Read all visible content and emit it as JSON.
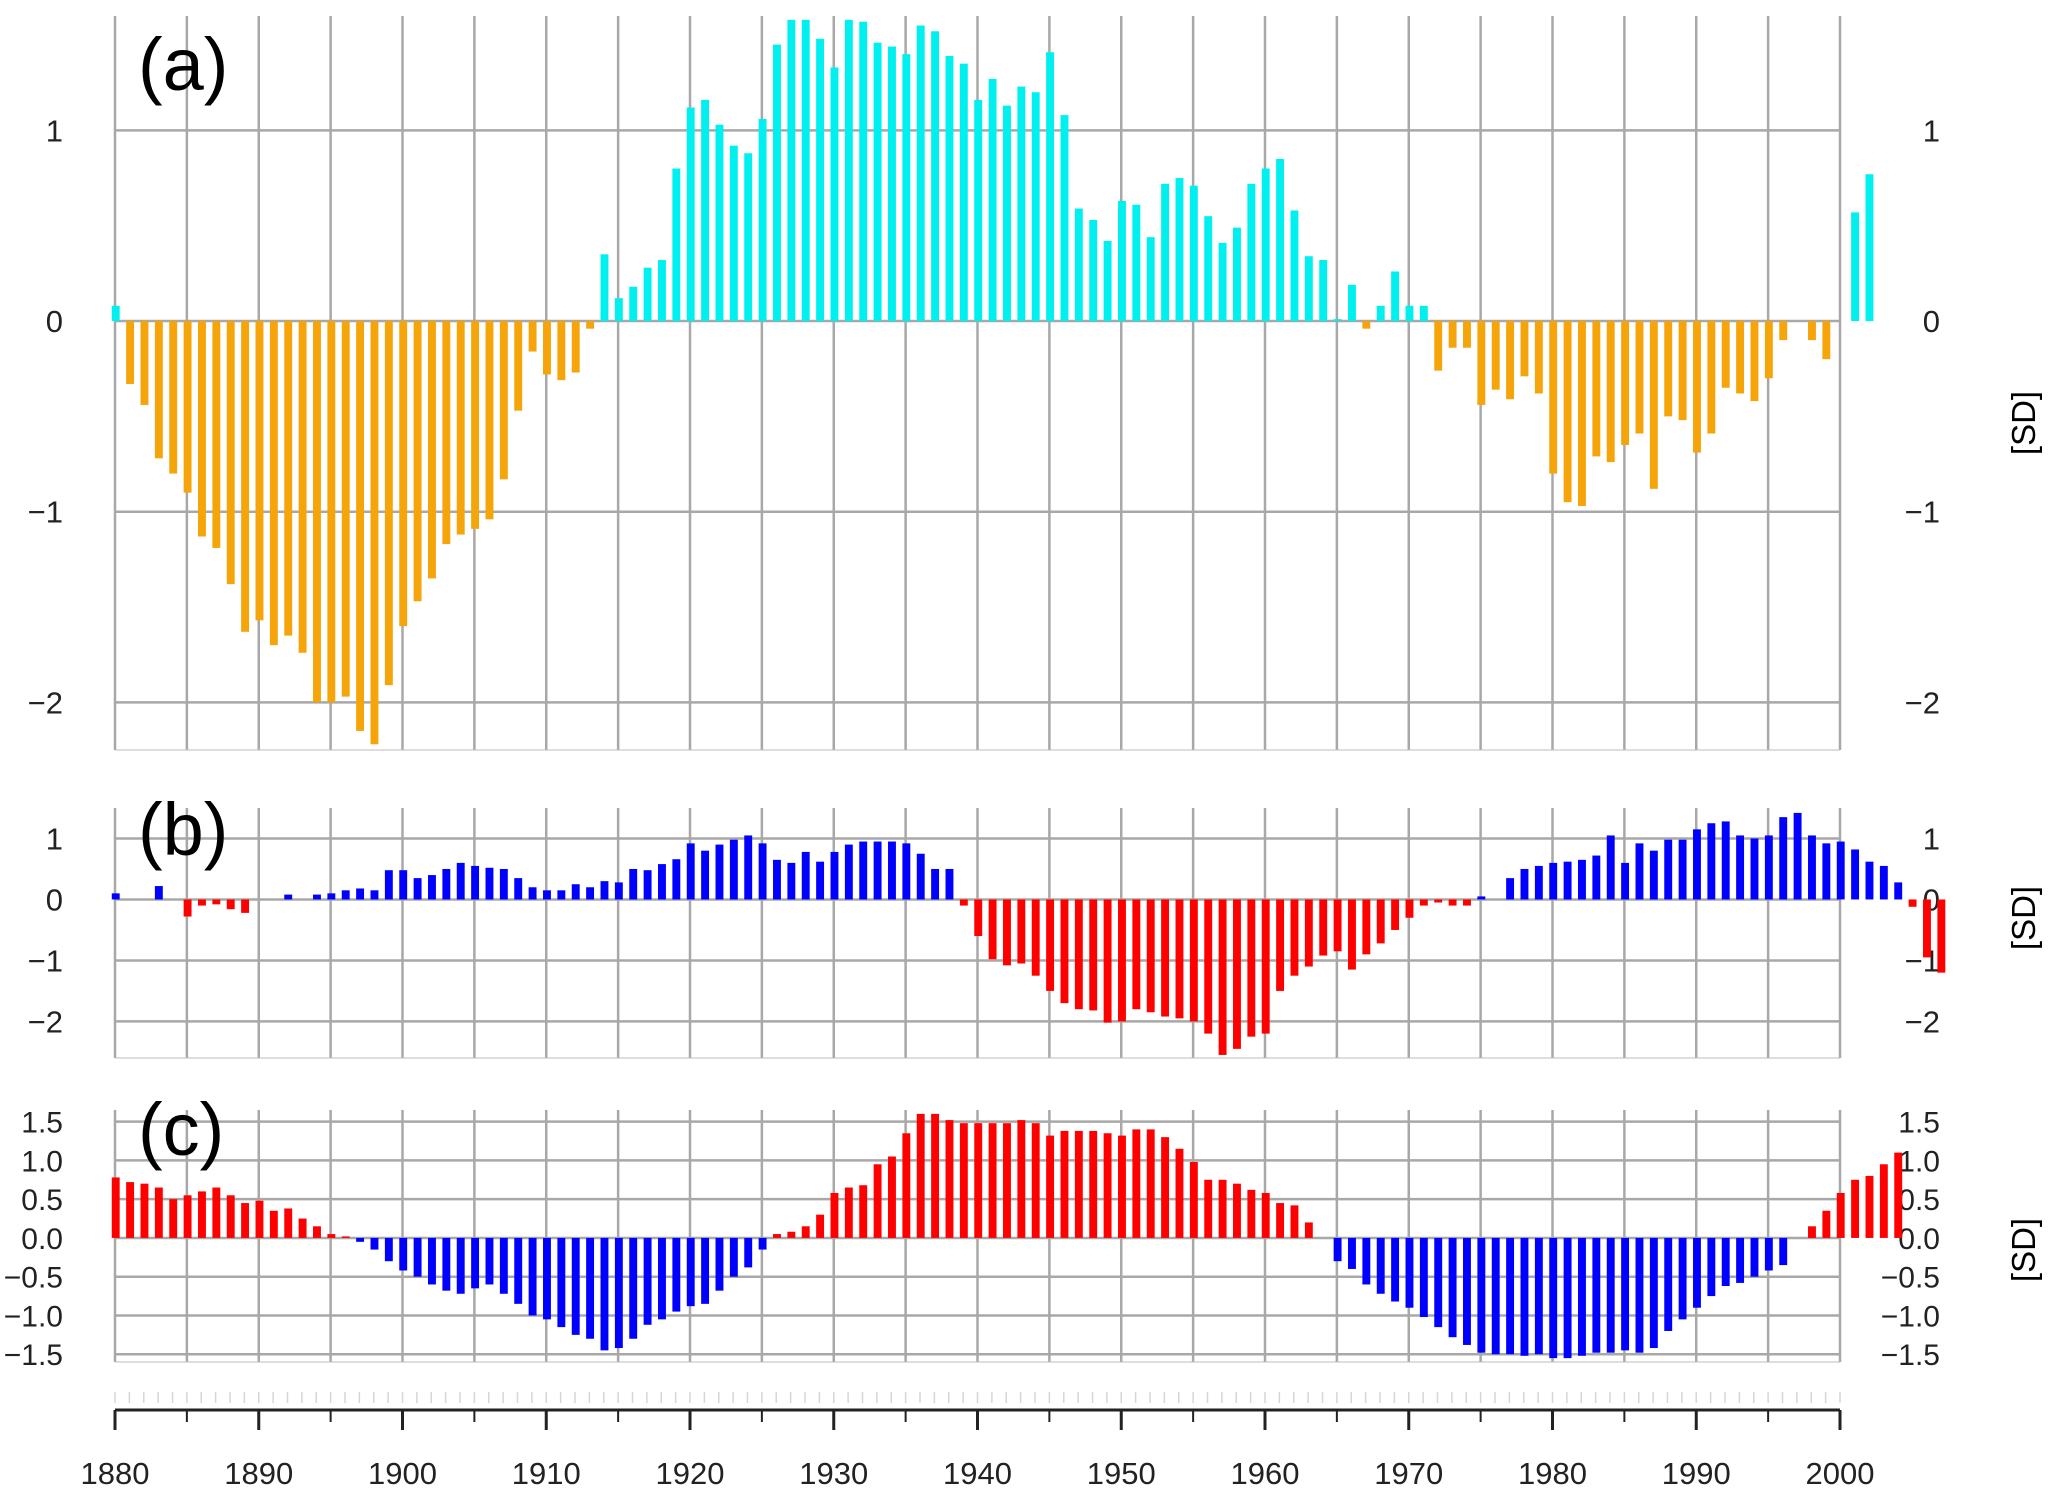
{
  "chart_data": [
    {
      "panel_label": "(a)",
      "type": "bar",
      "unit_label": "[SD]",
      "x": {
        "start": 1880,
        "end": 2000
      },
      "ylim": [
        -2.25,
        1.6
      ],
      "yticks": [
        1,
        0,
        -1,
        -2
      ],
      "ytick_labels": [
        "1",
        "0",
        "−1",
        "−2"
      ],
      "colors": {
        "positive": "#00f0f0",
        "negative": "#f5a40a"
      },
      "grid": true,
      "values": [
        0.08,
        -0.33,
        -0.44,
        -0.72,
        -0.8,
        -0.9,
        -1.13,
        -1.19,
        -1.38,
        -1.63,
        -1.57,
        -1.7,
        -1.65,
        -1.74,
        -2.0,
        -2.0,
        -1.97,
        -2.15,
        -2.22,
        -1.91,
        -1.6,
        -1.47,
        -1.35,
        -1.17,
        -1.12,
        -1.09,
        -1.04,
        -0.83,
        -0.47,
        -0.16,
        -0.28,
        -0.31,
        -0.27,
        -0.04,
        0.35,
        0.12,
        0.18,
        0.28,
        0.32,
        0.8,
        1.12,
        1.16,
        1.03,
        0.92,
        0.88,
        1.06,
        1.45,
        1.58,
        1.58,
        1.48,
        1.33,
        1.58,
        1.57,
        1.46,
        1.44,
        1.4,
        1.55,
        1.52,
        1.39,
        1.35,
        1.16,
        1.27,
        1.13,
        1.23,
        1.2,
        1.41,
        1.08,
        0.59,
        0.53,
        0.42,
        0.63,
        0.61,
        0.44,
        0.72,
        0.75,
        0.71,
        0.55,
        0.41,
        0.49,
        0.72,
        0.8,
        0.85,
        0.58,
        0.34,
        0.32,
        0.01,
        0.19,
        -0.04,
        0.08,
        0.26,
        0.08,
        0.08,
        -0.26,
        -0.14,
        -0.14,
        -0.44,
        -0.36,
        -0.41,
        -0.29,
        -0.38,
        -0.8,
        -0.95,
        -0.97,
        -0.71,
        -0.74,
        -0.65,
        -0.59,
        -0.88,
        -0.5,
        -0.52,
        -0.69,
        -0.59,
        -0.35,
        -0.38,
        -0.42,
        -0.3,
        -0.1,
        0.0,
        -0.1,
        -0.2,
        0.0,
        0.57,
        0.77
      ]
    },
    {
      "panel_label": "(b)",
      "type": "bar",
      "unit_label": "[SD]",
      "x": {
        "start": 1880,
        "end": 2000
      },
      "ylim": [
        -2.6,
        1.5
      ],
      "yticks": [
        1,
        0,
        -1,
        -2
      ],
      "ytick_labels": [
        "1",
        "0",
        "−1",
        "−2"
      ],
      "colors": {
        "positive": "#0000ff",
        "negative": "#ff0000"
      },
      "grid": true,
      "values": [
        0.1,
        0.0,
        0.0,
        0.22,
        0.0,
        -0.28,
        -0.1,
        -0.08,
        -0.16,
        -0.22,
        0.0,
        0.0,
        0.08,
        0.0,
        0.08,
        0.1,
        0.15,
        0.18,
        0.15,
        0.48,
        0.48,
        0.35,
        0.4,
        0.5,
        0.6,
        0.55,
        0.52,
        0.5,
        0.35,
        0.2,
        0.15,
        0.15,
        0.25,
        0.2,
        0.3,
        0.28,
        0.5,
        0.48,
        0.58,
        0.66,
        0.92,
        0.8,
        0.9,
        0.98,
        1.05,
        0.92,
        0.65,
        0.6,
        0.78,
        0.62,
        0.78,
        0.9,
        0.95,
        0.95,
        0.95,
        0.92,
        0.75,
        0.5,
        0.5,
        -0.1,
        -0.6,
        -0.98,
        -1.08,
        -1.05,
        -1.25,
        -1.5,
        -1.7,
        -1.8,
        -1.82,
        -2.02,
        -2.0,
        -1.8,
        -1.85,
        -1.92,
        -1.95,
        -2.0,
        -2.2,
        -2.55,
        -2.45,
        -2.25,
        -2.2,
        -1.5,
        -1.25,
        -1.1,
        -0.92,
        -0.85,
        -1.15,
        -0.9,
        -0.72,
        -0.5,
        -0.3,
        -0.1,
        -0.05,
        -0.1,
        -0.1,
        0.05,
        0.0,
        0.35,
        0.5,
        0.55,
        0.6,
        0.62,
        0.65,
        0.72,
        1.05,
        0.6,
        0.92,
        0.8,
        0.98,
        0.98,
        1.15,
        1.25,
        1.28,
        1.05,
        1.0,
        1.05,
        1.35,
        1.42,
        1.05,
        0.92,
        0.95,
        0.82,
        0.62,
        0.55,
        0.28,
        -0.12,
        -0.95,
        -1.2
      ]
    },
    {
      "panel_label": "(c)",
      "type": "bar",
      "unit_label": "[SD]",
      "x": {
        "start": 1880,
        "end": 2000
      },
      "ylim": [
        -1.6,
        1.65
      ],
      "yticks": [
        1.5,
        1.0,
        0.5,
        0.0,
        -0.5,
        -1.0,
        -1.5
      ],
      "ytick_labels": [
        "1.5",
        "1.0",
        "0.5",
        "0.0",
        "−0.5",
        "−1.0",
        "−1.5"
      ],
      "colors": {
        "positive": "#ff0000",
        "negative": "#0000ff"
      },
      "grid": true,
      "values": [
        0.78,
        0.72,
        0.7,
        0.65,
        0.5,
        0.55,
        0.6,
        0.65,
        0.55,
        0.45,
        0.48,
        0.35,
        0.38,
        0.25,
        0.15,
        0.05,
        0.02,
        -0.05,
        -0.15,
        -0.3,
        -0.42,
        -0.5,
        -0.6,
        -0.68,
        -0.72,
        -0.65,
        -0.6,
        -0.72,
        -0.85,
        -1.0,
        -1.05,
        -1.15,
        -1.25,
        -1.3,
        -1.45,
        -1.42,
        -1.3,
        -1.12,
        -1.05,
        -0.95,
        -0.88,
        -0.85,
        -0.68,
        -0.5,
        -0.38,
        -0.15,
        0.05,
        0.08,
        0.15,
        0.3,
        0.58,
        0.65,
        0.68,
        0.95,
        1.05,
        1.35,
        1.6,
        1.6,
        1.52,
        1.48,
        1.48,
        1.48,
        1.48,
        1.52,
        1.48,
        1.32,
        1.38,
        1.38,
        1.38,
        1.35,
        1.32,
        1.4,
        1.4,
        1.3,
        1.15,
        0.98,
        0.75,
        0.75,
        0.7,
        0.62,
        0.58,
        0.45,
        0.42,
        0.2,
        0.0,
        -0.3,
        -0.4,
        -0.6,
        -0.72,
        -0.82,
        -0.9,
        -1.02,
        -1.15,
        -1.28,
        -1.38,
        -1.48,
        -1.5,
        -1.5,
        -1.52,
        -1.5,
        -1.55,
        -1.55,
        -1.52,
        -1.48,
        -1.48,
        -1.45,
        -1.48,
        -1.42,
        -1.2,
        -1.05,
        -0.9,
        -0.75,
        -0.62,
        -0.58,
        -0.5,
        -0.42,
        -0.35,
        0.0,
        0.15,
        0.35,
        0.58,
        0.75,
        0.8,
        0.95,
        1.1
      ]
    }
  ],
  "x_axis": {
    "tick_labels": [
      "1880",
      "1890",
      "1900",
      "1910",
      "1920",
      "1930",
      "1940",
      "1950",
      "1960",
      "1970",
      "1980",
      "1990",
      "2000"
    ]
  }
}
